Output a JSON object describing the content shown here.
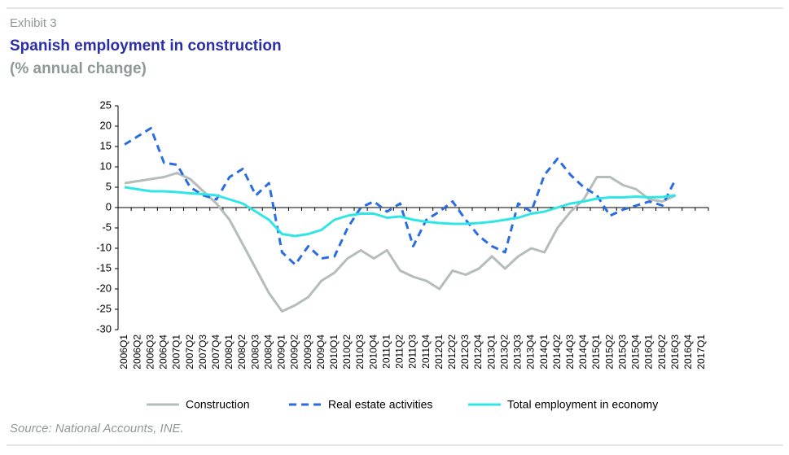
{
  "chart_data": {
    "type": "line",
    "label": "Exhibit 3",
    "title": "Spanish employment in construction",
    "subtitle": "(% annual change)",
    "source": "Source: National Accounts, INE.",
    "categories": [
      "2006Q1",
      "2006Q2",
      "2006Q3",
      "2006Q4",
      "2007Q1",
      "2007Q2",
      "2007Q3",
      "2007Q4",
      "2008Q1",
      "2008Q2",
      "2008Q3",
      "2008Q4",
      "2009Q1",
      "2009Q2",
      "2009Q3",
      "2009Q4",
      "2010Q1",
      "2010Q2",
      "2010Q3",
      "2010Q4",
      "2011Q1",
      "2011Q2",
      "2011Q3",
      "2011Q4",
      "2012Q1",
      "2012Q2",
      "2012Q3",
      "2012Q4",
      "2013Q1",
      "2013Q2",
      "2013Q3",
      "2013Q4",
      "2014Q1",
      "2014Q2",
      "2014Q3",
      "2014Q4",
      "2015Q1",
      "2015Q2",
      "2015Q3",
      "2015Q4",
      "2016Q1",
      "2016Q2",
      "2016Q3",
      "2016Q4",
      "2017Q1"
    ],
    "series": [
      {
        "name": "Construction",
        "color": "#b4bdbb",
        "dash": false,
        "values": [
          6,
          6.5,
          7,
          7.5,
          8.5,
          7,
          4,
          1,
          -3,
          -9,
          -15,
          -21,
          -25.5,
          -24,
          -22,
          -18,
          -16,
          -12.5,
          -10.5,
          -12.5,
          -10.5,
          -15.5,
          -17,
          -18,
          -20,
          -15.5,
          -16.5,
          -15,
          -12,
          -15,
          -12,
          -10,
          -11,
          -5,
          -1,
          2,
          7.5,
          7.5,
          5.5,
          4.5,
          2,
          1.5,
          3,
          null,
          null
        ]
      },
      {
        "name": "Real estate activities",
        "color": "#2a6de0",
        "dash": true,
        "values": [
          15.5,
          17.5,
          19.5,
          11,
          10.5,
          5,
          3,
          2,
          7.5,
          9.5,
          3,
          6,
          -11,
          -14,
          -9.5,
          -12.5,
          -12,
          -5,
          0,
          1.5,
          -1,
          1,
          -9.5,
          -3,
          -1,
          1.5,
          -3,
          -7,
          -9.5,
          -11,
          1,
          -1,
          8,
          12,
          8,
          5,
          3,
          -2,
          -0.5,
          0.5,
          1.5,
          0.5,
          7,
          null,
          null
        ]
      },
      {
        "name": "Total employment in economy",
        "color": "#2fe6e6",
        "dash": false,
        "values": [
          5,
          4.5,
          4,
          4,
          3.8,
          3.5,
          3.3,
          3,
          2,
          1,
          -1,
          -3,
          -6.5,
          -7,
          -6.5,
          -5.5,
          -3,
          -2,
          -1.5,
          -1.5,
          -2.5,
          -2.2,
          -3,
          -3.5,
          -3.8,
          -4,
          -4,
          -3.8,
          -3.5,
          -3,
          -2.5,
          -1.5,
          -1,
          0,
          1,
          1.5,
          2.2,
          2.5,
          2.5,
          2.7,
          2.5,
          2.6,
          3,
          null,
          null
        ]
      }
    ],
    "ylim": [
      -30,
      25
    ],
    "yticks": [
      -30,
      -25,
      -20,
      -15,
      -10,
      -5,
      0,
      5,
      10,
      15,
      20,
      25
    ],
    "grid": false,
    "legend": "bottom"
  }
}
